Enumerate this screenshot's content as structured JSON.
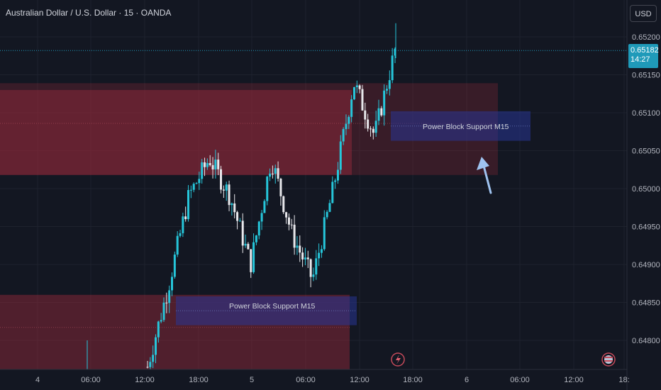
{
  "header": {
    "symbol_title": "Australian Dollar / U.S. Dollar · 15 · OANDA",
    "currency_button": "USD"
  },
  "price_tag": {
    "price": "0.65182",
    "countdown": "14:27"
  },
  "annotations": {
    "upper_zone_label": "Power Block Support M15",
    "lower_zone_label": "Power Block Support M15"
  },
  "colors": {
    "background": "#131722",
    "bull_candle": "#26c6da",
    "bear_candle": "#e8e8ec",
    "supply_zone": "#9b2b3b",
    "support_block": "#283593",
    "arrow": "#9fc3f0",
    "last_price_line": "#1f9ab9"
  },
  "chart_data": {
    "type": "candlestick",
    "title": "Australian Dollar / U.S. Dollar · 15 · OANDA",
    "y_tick_labels": [
      "0.65200",
      "0.65150",
      "0.65100",
      "0.65050",
      "0.65000",
      "0.64950",
      "0.64900",
      "0.64850",
      "0.64800"
    ],
    "x_tick_labels": [
      "4",
      "06:00",
      "12:00",
      "18:00",
      "5",
      "06:00",
      "12:00",
      "18:00",
      "6",
      "06:00",
      "12:00",
      "18:"
    ],
    "ylim": [
      0.64765,
      0.65245
    ],
    "last_price": 0.65182,
    "zones": [
      {
        "label": "Power Block Support M15",
        "y_top": 0.65102,
        "y_bottom": 0.65063
      },
      {
        "label": "Power Block Support M15",
        "y_top": 0.64858,
        "y_bottom": 0.6482
      }
    ],
    "supply_zones": [
      {
        "y_top": 0.65139,
        "y_bottom": 0.65018
      },
      {
        "y_top": 0.6486,
        "y_bottom": 0.64765
      }
    ],
    "price_path": [
      {
        "x": "Day 5 ~12:20",
        "y": 0.64765
      },
      {
        "x": "Day 5 ~14:30",
        "y": 0.6487
      },
      {
        "x": "Day 5 ~18:00",
        "y": 0.6499
      },
      {
        "x": "Day 5 ~21:30",
        "y": 0.6504
      },
      {
        "x": "Day 6 ~00:30",
        "y": 0.6499
      },
      {
        "x": "Day 6 ~03:30",
        "y": 0.649
      },
      {
        "x": "Day 6 ~05:00",
        "y": 0.6504
      },
      {
        "x": "Day 6 ~07:30",
        "y": 0.6494
      },
      {
        "x": "Day 6 ~09:30",
        "y": 0.6488
      },
      {
        "x": "Day 6 ~12:00",
        "y": 0.65
      },
      {
        "x": "Day 6 ~13:00",
        "y": 0.6514
      },
      {
        "x": "Day 6 ~15:30",
        "y": 0.6507
      },
      {
        "x": "Day 6 ~16:15",
        "y": 0.65182
      }
    ]
  }
}
